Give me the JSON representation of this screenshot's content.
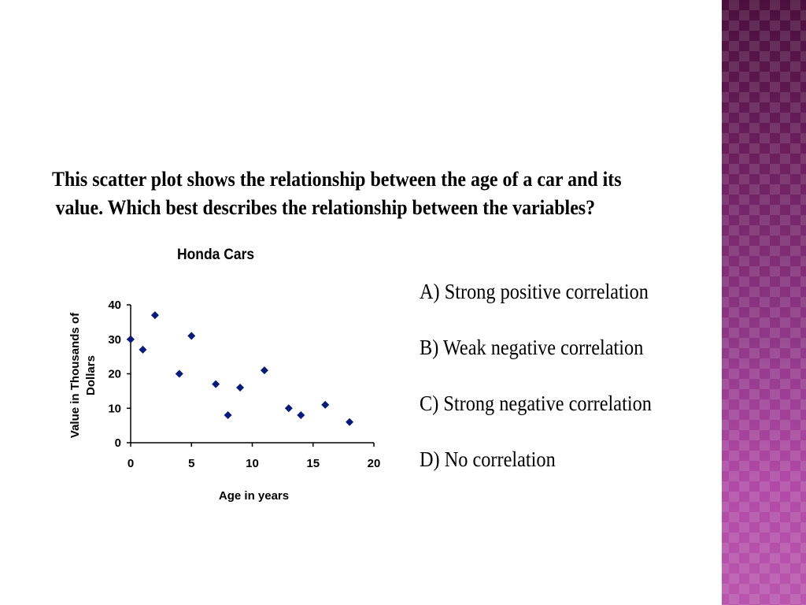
{
  "question": {
    "line1": "This scatter plot shows the relationship between the age of a car and its",
    "line2": "value.  Which best describes the relationship between the variables?"
  },
  "options": [
    {
      "label": "A)  Strong positive correlation"
    },
    {
      "label": "B)  Weak negative correlation"
    },
    {
      "label": "C)  Strong negative correlation"
    },
    {
      "label": "D)  No correlation"
    }
  ],
  "chart_data": {
    "type": "scatter",
    "title": "Honda Cars",
    "xlabel": "Age in years",
    "ylabel_lines": [
      "Value in Thousands of",
      "Dollars"
    ],
    "xlim": [
      0,
      20
    ],
    "ylim": [
      0,
      40
    ],
    "xticks": [
      0,
      5,
      10,
      15,
      20
    ],
    "yticks": [
      0,
      10,
      20,
      30,
      40
    ],
    "grid": false,
    "marker": "diamond",
    "marker_color": "#0a1a78",
    "points": [
      {
        "x": 0,
        "y": 30
      },
      {
        "x": 1,
        "y": 27
      },
      {
        "x": 2,
        "y": 37
      },
      {
        "x": 4,
        "y": 20
      },
      {
        "x": 5,
        "y": 31
      },
      {
        "x": 7,
        "y": 17
      },
      {
        "x": 8,
        "y": 8
      },
      {
        "x": 9,
        "y": 16
      },
      {
        "x": 11,
        "y": 21
      },
      {
        "x": 13,
        "y": 10
      },
      {
        "x": 14,
        "y": 8
      },
      {
        "x": 16,
        "y": 11
      },
      {
        "x": 18,
        "y": 6
      }
    ]
  },
  "theme": {
    "side_band_color": "#8e3786"
  }
}
